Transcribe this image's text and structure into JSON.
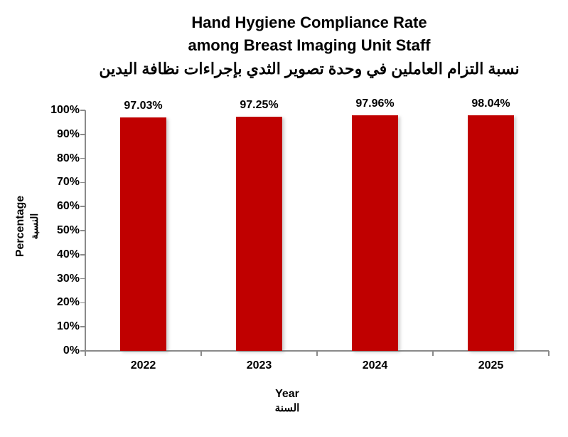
{
  "title": {
    "line1": "Hand Hygiene Compliance Rate",
    "line2": "among Breast Imaging Unit Staff",
    "line3_ar": "نسبة التزام العاملين في وحدة تصوير الثدي بإجراءات نظافة اليدين"
  },
  "axes": {
    "y_title_en": "Percentage",
    "y_title_ar": "النسبة",
    "x_title_en": "Year",
    "x_title_ar": "السنة"
  },
  "chart_data": {
    "type": "bar",
    "title": "Hand Hygiene Compliance Rate among Breast Imaging Unit Staff",
    "title_ar": "نسبة التزام العاملين في وحدة تصوير الثدي بإجراءات نظافة اليدين",
    "categories": [
      "2022",
      "2023",
      "2024",
      "2025"
    ],
    "values": [
      97.03,
      97.25,
      97.96,
      98.04
    ],
    "data_labels": [
      "97.03%",
      "97.25%",
      "97.96%",
      "98.04%"
    ],
    "xlabel": "Year",
    "xlabel_ar": "السنة",
    "ylabel": "Percentage",
    "ylabel_ar": "النسبة",
    "ylim": [
      0,
      100
    ],
    "ytick_step": 10,
    "ytick_suffix": "%",
    "grid": false,
    "legend": "none",
    "colors": {
      "bar": "#C00000",
      "axis": "#8a8a8a",
      "text": "#000000",
      "background": "#ffffff"
    }
  }
}
